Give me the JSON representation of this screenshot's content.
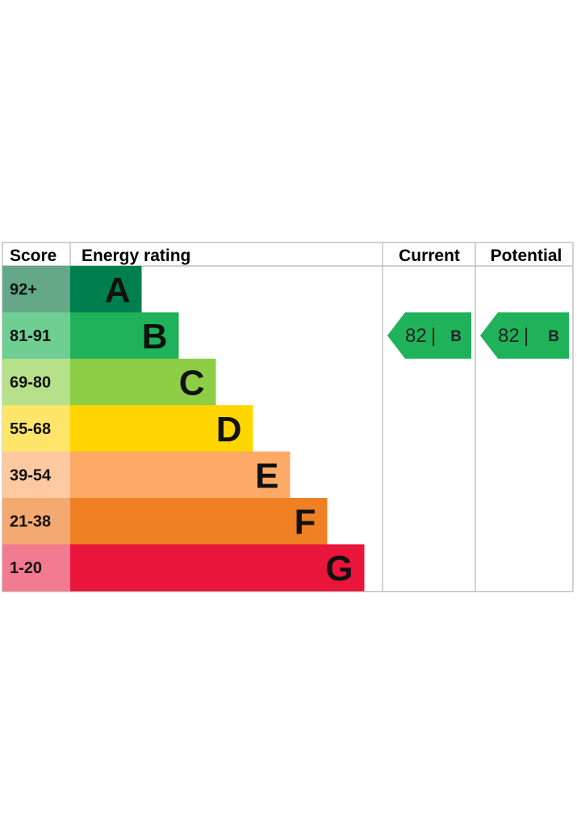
{
  "headers": {
    "score": "Score",
    "energy_rating": "Energy rating",
    "current": "Current",
    "potential": "Potential"
  },
  "chart_data": {
    "type": "bar",
    "bands": [
      {
        "letter": "A",
        "score": "92+",
        "bar_color": "#007f4e",
        "score_color": "#64a887"
      },
      {
        "letter": "B",
        "score": "81-91",
        "bar_color": "#1fb25a",
        "score_color": "#6fce92"
      },
      {
        "letter": "C",
        "score": "69-80",
        "bar_color": "#8dce46",
        "score_color": "#b7e08a"
      },
      {
        "letter": "D",
        "score": "55-68",
        "bar_color": "#ffd500",
        "score_color": "#ffe56a"
      },
      {
        "letter": "E",
        "score": "39-54",
        "bar_color": "#fcaa65",
        "score_color": "#fdc9a0"
      },
      {
        "letter": "F",
        "score": "21-38",
        "bar_color": "#ef8023",
        "score_color": "#f4a970"
      },
      {
        "letter": "G",
        "score": "1-20",
        "bar_color": "#e9153b",
        "score_color": "#f27a91"
      }
    ],
    "current": {
      "value": "82",
      "separator": "|",
      "letter": "B",
      "color": "#1fb25a"
    },
    "potential": {
      "value": "82",
      "separator": "|",
      "letter": "B",
      "color": "#1fb25a"
    }
  }
}
